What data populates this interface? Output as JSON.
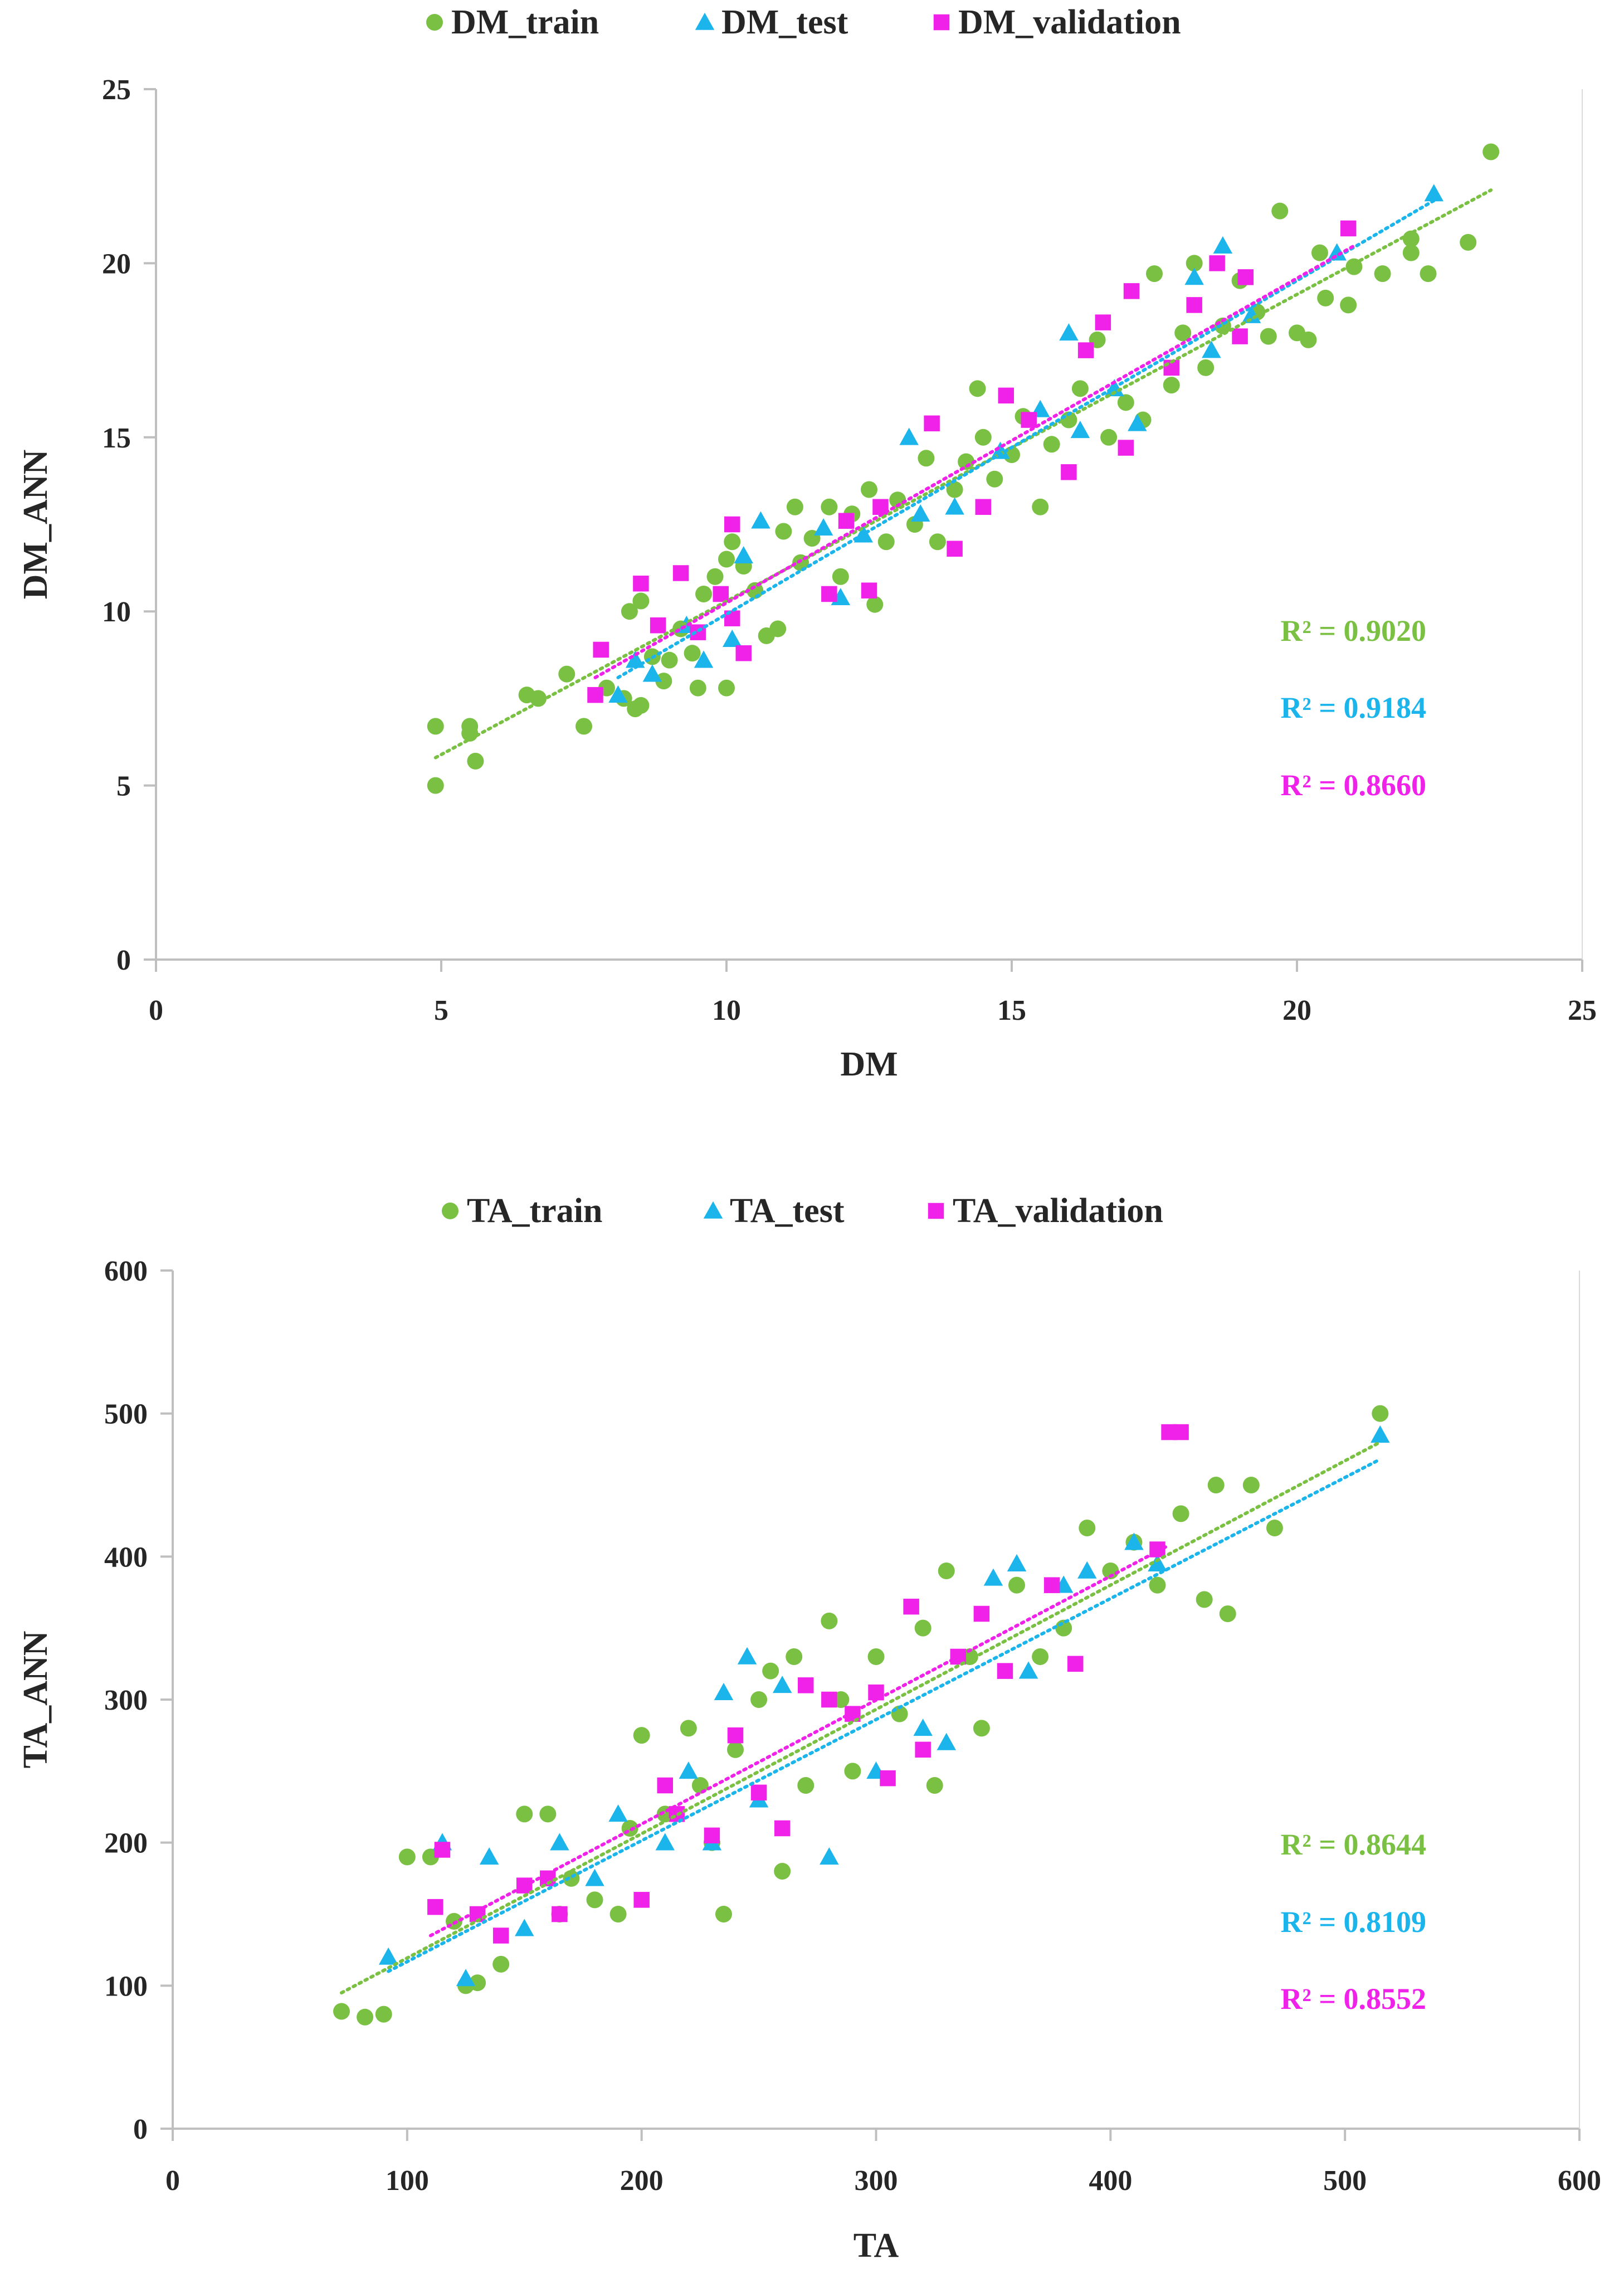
{
  "chart_data": [
    {
      "type": "scatter",
      "xlabel": "DM",
      "ylabel": "DM_ANN",
      "xlim": [
        0,
        25
      ],
      "ylim": [
        0,
        25
      ],
      "xticks": [
        "0",
        "5",
        "10",
        "15",
        "20",
        "25"
      ],
      "yticks": [
        "0",
        "5",
        "10",
        "15",
        "20",
        "25"
      ],
      "grid": false,
      "legend_position": "top-center",
      "series": [
        {
          "name": "DM_train",
          "marker": "circle",
          "color": "#7AC143",
          "r2_label": "R² = 0.9020",
          "trendline": [
            [
              4.9,
              5.8
            ],
            [
              23.4,
              22.1
            ]
          ],
          "points": [
            [
              4.9,
              5.0
            ],
            [
              4.9,
              6.7
            ],
            [
              5.5,
              6.7
            ],
            [
              5.6,
              5.7
            ],
            [
              5.5,
              6.5
            ],
            [
              6.5,
              7.6
            ],
            [
              6.7,
              7.5
            ],
            [
              7.2,
              8.2
            ],
            [
              7.5,
              6.7
            ],
            [
              7.9,
              7.8
            ],
            [
              8.2,
              7.5
            ],
            [
              8.4,
              7.2
            ],
            [
              8.5,
              7.3
            ],
            [
              8.3,
              10.0
            ],
            [
              8.5,
              10.3
            ],
            [
              8.7,
              8.7
            ],
            [
              8.9,
              8.0
            ],
            [
              9.0,
              8.6
            ],
            [
              9.2,
              9.5
            ],
            [
              9.4,
              8.8
            ],
            [
              9.5,
              7.8
            ],
            [
              9.6,
              10.5
            ],
            [
              9.8,
              11.0
            ],
            [
              10.0,
              7.8
            ],
            [
              10.0,
              11.5
            ],
            [
              10.1,
              12.0
            ],
            [
              10.3,
              11.3
            ],
            [
              10.5,
              10.6
            ],
            [
              10.7,
              9.3
            ],
            [
              10.9,
              9.5
            ],
            [
              11.0,
              12.3
            ],
            [
              11.2,
              13.0
            ],
            [
              11.3,
              11.4
            ],
            [
              11.5,
              12.1
            ],
            [
              11.8,
              13.0
            ],
            [
              12.0,
              11.0
            ],
            [
              12.2,
              12.8
            ],
            [
              12.5,
              13.5
            ],
            [
              12.6,
              10.2
            ],
            [
              12.8,
              12.0
            ],
            [
              13.0,
              13.2
            ],
            [
              13.3,
              12.5
            ],
            [
              13.5,
              14.4
            ],
            [
              13.7,
              12.0
            ],
            [
              14.0,
              13.5
            ],
            [
              14.2,
              14.3
            ],
            [
              14.4,
              16.4
            ],
            [
              14.5,
              15.0
            ],
            [
              14.7,
              13.8
            ],
            [
              15.0,
              14.5
            ],
            [
              15.2,
              15.6
            ],
            [
              15.5,
              13.0
            ],
            [
              15.7,
              14.8
            ],
            [
              16.0,
              15.5
            ],
            [
              16.2,
              16.4
            ],
            [
              16.5,
              17.8
            ],
            [
              16.7,
              15.0
            ],
            [
              17.0,
              16.0
            ],
            [
              17.3,
              15.5
            ],
            [
              17.5,
              19.7
            ],
            [
              17.8,
              16.5
            ],
            [
              18.0,
              18.0
            ],
            [
              18.2,
              20.0
            ],
            [
              18.4,
              17.0
            ],
            [
              18.7,
              18.2
            ],
            [
              19.0,
              19.5
            ],
            [
              19.3,
              18.6
            ],
            [
              19.5,
              17.9
            ],
            [
              19.7,
              21.5
            ],
            [
              20.0,
              18.0
            ],
            [
              20.2,
              17.8
            ],
            [
              20.4,
              20.3
            ],
            [
              20.5,
              19.0
            ],
            [
              20.9,
              18.8
            ],
            [
              21.0,
              19.9
            ],
            [
              21.5,
              19.7
            ],
            [
              22.0,
              20.7
            ],
            [
              22.0,
              20.3
            ],
            [
              22.3,
              19.7
            ],
            [
              23.0,
              20.6
            ],
            [
              23.4,
              23.2
            ]
          ]
        },
        {
          "name": "DM_test",
          "marker": "triangle",
          "color": "#1BB5EC",
          "r2_label": "R² = 0.9184",
          "trendline": [
            [
              8.1,
              8.1
            ],
            [
              22.4,
              21.8
            ]
          ],
          "points": [
            [
              8.1,
              7.6
            ],
            [
              8.4,
              8.6
            ],
            [
              8.7,
              8.2
            ],
            [
              9.3,
              9.6
            ],
            [
              9.6,
              8.6
            ],
            [
              10.1,
              9.2
            ],
            [
              10.3,
              11.6
            ],
            [
              10.6,
              12.6
            ],
            [
              11.7,
              12.4
            ],
            [
              12.0,
              10.4
            ],
            [
              12.4,
              12.2
            ],
            [
              13.2,
              15.0
            ],
            [
              13.4,
              12.8
            ],
            [
              14.0,
              13.0
            ],
            [
              14.8,
              14.6
            ],
            [
              15.5,
              15.8
            ],
            [
              16.0,
              18.0
            ],
            [
              16.2,
              15.2
            ],
            [
              16.8,
              16.4
            ],
            [
              17.2,
              15.4
            ],
            [
              18.2,
              19.6
            ],
            [
              18.5,
              17.5
            ],
            [
              18.7,
              20.5
            ],
            [
              19.2,
              18.5
            ],
            [
              20.7,
              20.3
            ],
            [
              22.4,
              22.0
            ]
          ]
        },
        {
          "name": "DM_validation",
          "marker": "square",
          "color": "#F021E8",
          "r2_label": "R² = 0.8660",
          "trendline": [
            [
              7.7,
              8.1
            ],
            [
              21.0,
              20.5
            ]
          ],
          "points": [
            [
              7.7,
              7.6
            ],
            [
              7.8,
              8.9
            ],
            [
              8.5,
              10.8
            ],
            [
              8.8,
              9.6
            ],
            [
              9.2,
              11.1
            ],
            [
              9.5,
              9.4
            ],
            [
              9.9,
              10.5
            ],
            [
              10.1,
              12.5
            ],
            [
              10.1,
              9.8
            ],
            [
              10.3,
              8.8
            ],
            [
              11.8,
              10.5
            ],
            [
              12.1,
              12.6
            ],
            [
              12.5,
              10.6
            ],
            [
              12.7,
              13.0
            ],
            [
              13.6,
              15.4
            ],
            [
              14.0,
              11.8
            ],
            [
              14.5,
              13.0
            ],
            [
              14.9,
              16.2
            ],
            [
              15.3,
              15.5
            ],
            [
              16.0,
              14.0
            ],
            [
              16.3,
              17.5
            ],
            [
              16.6,
              18.3
            ],
            [
              17.0,
              14.7
            ],
            [
              17.1,
              19.2
            ],
            [
              17.8,
              17.0
            ],
            [
              18.2,
              18.8
            ],
            [
              18.6,
              20.0
            ],
            [
              19.0,
              17.9
            ],
            [
              19.1,
              19.6
            ],
            [
              20.9,
              21.0
            ]
          ]
        }
      ]
    },
    {
      "type": "scatter",
      "xlabel": "TA",
      "ylabel": "TA_ANN",
      "xlim": [
        0,
        600
      ],
      "ylim": [
        0,
        600
      ],
      "xticks": [
        "0",
        "100",
        "200",
        "300",
        "400",
        "500",
        "600"
      ],
      "yticks": [
        "0",
        "100",
        "200",
        "300",
        "400",
        "500",
        "600"
      ],
      "grid": false,
      "legend_position": "top-center",
      "series": [
        {
          "name": "TA_train",
          "marker": "circle",
          "color": "#7AC143",
          "r2_label": "R² = 0.8644",
          "trendline": [
            [
              72,
              95
            ],
            [
              515,
              480
            ]
          ],
          "points": [
            [
              72,
              82
            ],
            [
              82,
              78
            ],
            [
              90,
              80
            ],
            [
              100,
              190
            ],
            [
              110,
              190
            ],
            [
              120,
              145
            ],
            [
              125,
              100
            ],
            [
              130,
              102
            ],
            [
              140,
              115
            ],
            [
              150,
              220
            ],
            [
              160,
              220
            ],
            [
              165,
              150
            ],
            [
              170,
              175
            ],
            [
              180,
              160
            ],
            [
              190,
              150
            ],
            [
              195,
              210
            ],
            [
              200,
              275
            ],
            [
              210,
              220
            ],
            [
              220,
              280
            ],
            [
              225,
              240
            ],
            [
              230,
              200
            ],
            [
              235,
              150
            ],
            [
              240,
              265
            ],
            [
              250,
              300
            ],
            [
              255,
              320
            ],
            [
              260,
              180
            ],
            [
              265,
              330
            ],
            [
              270,
              240
            ],
            [
              280,
              355
            ],
            [
              285,
              300
            ],
            [
              290,
              250
            ],
            [
              300,
              330
            ],
            [
              310,
              290
            ],
            [
              320,
              350
            ],
            [
              325,
              240
            ],
            [
              330,
              390
            ],
            [
              340,
              330
            ],
            [
              345,
              280
            ],
            [
              360,
              380
            ],
            [
              370,
              330
            ],
            [
              380,
              350
            ],
            [
              390,
              420
            ],
            [
              400,
              390
            ],
            [
              410,
              410
            ],
            [
              420,
              380
            ],
            [
              430,
              430
            ],
            [
              440,
              370
            ],
            [
              445,
              450
            ],
            [
              450,
              360
            ],
            [
              460,
              450
            ],
            [
              470,
              420
            ],
            [
              515,
              500
            ]
          ]
        },
        {
          "name": "TA_test",
          "marker": "triangle",
          "color": "#1BB5EC",
          "r2_label": "R² = 0.8109",
          "trendline": [
            [
              92,
              110
            ],
            [
              515,
              468
            ]
          ],
          "points": [
            [
              92,
              120
            ],
            [
              115,
              200
            ],
            [
              125,
              105
            ],
            [
              135,
              190
            ],
            [
              150,
              140
            ],
            [
              165,
              200
            ],
            [
              180,
              175
            ],
            [
              190,
              220
            ],
            [
              210,
              200
            ],
            [
              220,
              250
            ],
            [
              230,
              200
            ],
            [
              235,
              305
            ],
            [
              245,
              330
            ],
            [
              250,
              230
            ],
            [
              260,
              310
            ],
            [
              280,
              190
            ],
            [
              300,
              250
            ],
            [
              320,
              280
            ],
            [
              330,
              270
            ],
            [
              350,
              385
            ],
            [
              360,
              395
            ],
            [
              365,
              320
            ],
            [
              380,
              380
            ],
            [
              390,
              390
            ],
            [
              410,
              410
            ],
            [
              420,
              395
            ],
            [
              515,
              485
            ]
          ]
        },
        {
          "name": "TA_validation",
          "marker": "square",
          "color": "#F021E8",
          "r2_label": "R² = 0.8552",
          "trendline": [
            [
              110,
              135
            ],
            [
              425,
              408
            ]
          ],
          "points": [
            [
              112,
              155
            ],
            [
              115,
              195
            ],
            [
              130,
              150
            ],
            [
              140,
              135
            ],
            [
              150,
              170
            ],
            [
              160,
              175
            ],
            [
              165,
              150
            ],
            [
              200,
              160
            ],
            [
              210,
              240
            ],
            [
              215,
              220
            ],
            [
              230,
              205
            ],
            [
              240,
              275
            ],
            [
              250,
              235
            ],
            [
              260,
              210
            ],
            [
              270,
              310
            ],
            [
              280,
              300
            ],
            [
              290,
              290
            ],
            [
              300,
              305
            ],
            [
              305,
              245
            ],
            [
              315,
              365
            ],
            [
              320,
              265
            ],
            [
              335,
              330
            ],
            [
              345,
              360
            ],
            [
              355,
              320
            ],
            [
              375,
              380
            ],
            [
              385,
              325
            ],
            [
              420,
              405
            ],
            [
              425,
              487
            ],
            [
              430,
              487
            ]
          ]
        }
      ]
    }
  ]
}
